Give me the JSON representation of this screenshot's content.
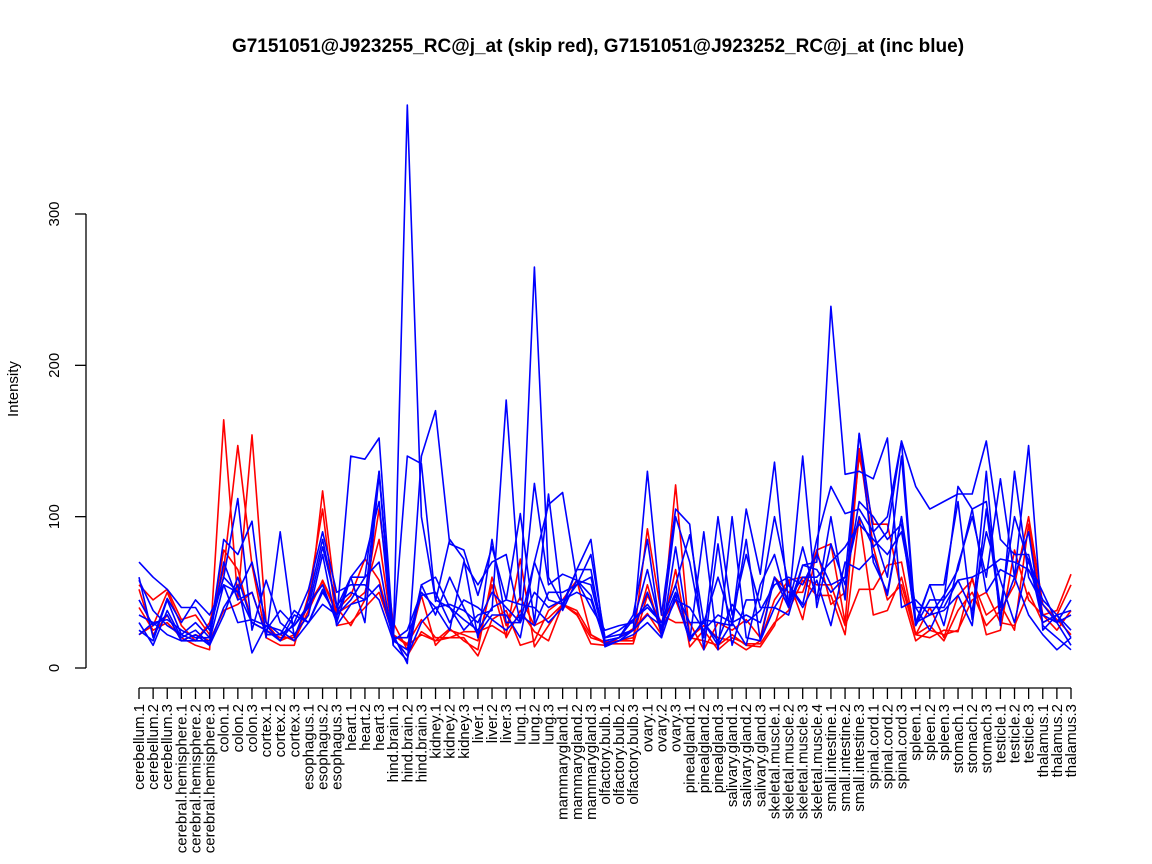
{
  "chart_data": {
    "type": "line",
    "title": "G7151051@J923255_RC@j_at (skip red), G7151051@J923252_RC@j_at (inc blue)",
    "xlabel": "",
    "ylabel": "Intensity",
    "ylim": [
      0,
      370
    ],
    "yticks": [
      0,
      100,
      200,
      300
    ],
    "grid": false,
    "categories": [
      "cerebellum.1",
      "cerebellum.2",
      "cerebellum.3",
      "cerebral.hemisphere.1",
      "cerebral.hemisphere.2",
      "cerebral.hemisphere.3",
      "colon.1",
      "colon.2",
      "colon.3",
      "cortex.1",
      "cortex.2",
      "cortex.3",
      "esophagus.1",
      "esophagus.2",
      "esophagus.3",
      "heart.1",
      "heart.2",
      "heart.3",
      "hind.brain.1",
      "hind.brain.2",
      "hind.brain.3",
      "kidney.1",
      "kidney.2",
      "kidney.3",
      "liver.1",
      "liver.2",
      "liver.3",
      "lung.1",
      "lung.2",
      "lung.3",
      "mammarygland.1",
      "mammarygland.2",
      "mammarygland.3",
      "olfactory.bulb.1",
      "olfactory.bulb.2",
      "olfactory.bulb.3",
      "ovary.1",
      "ovary.2",
      "ovary.3",
      "pinealgland.1",
      "pinealgland.2",
      "pinealgland.3",
      "salivary.gland.1",
      "salivary.gland.2",
      "salivary.gland.3",
      "skeletal.muscle.1",
      "skeletal.muscle.2",
      "skeletal.muscle.3",
      "skeletal.muscle.4",
      "small.intestine.1",
      "small.intestine.2",
      "small.intestine.3",
      "spinal.cord.1",
      "spinal.cord.2",
      "spinal.cord.3",
      "spleen.1",
      "spleen.2",
      "spleen.3",
      "stomach.1",
      "stomach.2",
      "stomach.3",
      "testicle.1",
      "testicle.2",
      "testicle.3",
      "thalamus.1",
      "thalamus.2",
      "thalamus.3"
    ],
    "series": [
      {
        "color": "#ff0000",
        "values": [
          40,
          25,
          30,
          20,
          15,
          12,
          164,
          45,
          154,
          30,
          18,
          22,
          35,
          117,
          40,
          28,
          45,
          105,
          30,
          12,
          48,
          15,
          25,
          22,
          18,
          55,
          20,
          38,
          24,
          18,
          42,
          38,
          22,
          17,
          18,
          20,
          55,
          22,
          121,
          20,
          18,
          15,
          22,
          15,
          14,
          28,
          58,
          60,
          55,
          55,
          28,
          52,
          52,
          68,
          70,
          22,
          28,
          18,
          38,
          50,
          28,
          38,
          55,
          100,
          42,
          32,
          22
        ]
      },
      {
        "color": "#ff0000",
        "values": [
          55,
          45,
          52,
          32,
          35,
          22,
          78,
          65,
          30,
          25,
          20,
          20,
          42,
          57,
          36,
          42,
          50,
          85,
          20,
          8,
          24,
          18,
          26,
          18,
          12,
          60,
          28,
          47,
          28,
          33,
          42,
          35,
          20,
          17,
          18,
          18,
          92,
          35,
          30,
          30,
          12,
          30,
          25,
          32,
          20,
          60,
          50,
          50,
          78,
          42,
          50,
          140,
          95,
          95,
          50,
          18,
          25,
          22,
          25,
          45,
          50,
          30,
          28,
          50,
          30,
          35,
          55
        ]
      },
      {
        "color": "#ff0000",
        "values": [
          22,
          28,
          50,
          28,
          18,
          30,
          65,
          147,
          68,
          20,
          15,
          15,
          48,
          105,
          28,
          30,
          40,
          50,
          22,
          15,
          22,
          18,
          20,
          20,
          8,
          32,
          38,
          15,
          18,
          38,
          45,
          58,
          22,
          16,
          16,
          16,
          48,
          30,
          45,
          20,
          28,
          20,
          18,
          12,
          18,
          45,
          58,
          32,
          78,
          82,
          30,
          145,
          80,
          45,
          55,
          22,
          40,
          20,
          48,
          58,
          35,
          42,
          25,
          95,
          35,
          25,
          38
        ]
      },
      {
        "color": "#ff0000",
        "values": [
          52,
          22,
          35,
          18,
          22,
          18,
          38,
          42,
          50,
          22,
          22,
          18,
          38,
          58,
          38,
          48,
          72,
          58,
          22,
          16,
          32,
          20,
          20,
          24,
          24,
          28,
          22,
          72,
          14,
          28,
          42,
          36,
          16,
          15,
          20,
          26,
          36,
          22,
          65,
          14,
          25,
          12,
          20,
          16,
          16,
          30,
          38,
          58,
          48,
          48,
          22,
          100,
          35,
          38,
          60,
          22,
          20,
          25,
          24,
          60,
          22,
          25,
          78,
          45,
          35,
          38,
          62
        ]
      },
      {
        "color": "#0000ff",
        "values": [
          58,
          38,
          28,
          22,
          18,
          28,
          60,
          50,
          30,
          25,
          38,
          28,
          42,
          55,
          30,
          60,
          72,
          110,
          15,
          372,
          100,
          45,
          40,
          25,
          35,
          38,
          177,
          45,
          265,
          60,
          42,
          55,
          75,
          20,
          25,
          32,
          40,
          30,
          55,
          18,
          32,
          30,
          28,
          85,
          18,
          60,
          40,
          68,
          70,
          239,
          128,
          130,
          125,
          152,
          40,
          45,
          35,
          38,
          48,
          28,
          105,
          35,
          60,
          35,
          22,
          12,
          20
        ]
      },
      {
        "color": "#0000ff",
        "values": [
          25,
          18,
          45,
          22,
          30,
          20,
          85,
          75,
          97,
          20,
          90,
          20,
          45,
          85,
          40,
          60,
          30,
          128,
          20,
          8,
          30,
          40,
          25,
          70,
          55,
          70,
          75,
          30,
          122,
          55,
          62,
          58,
          40,
          25,
          28,
          30,
          65,
          25,
          100,
          70,
          20,
          100,
          35,
          75,
          40,
          40,
          55,
          40,
          58,
          28,
          70,
          65,
          75,
          48,
          100,
          40,
          25,
          45,
          58,
          38,
          90,
          58,
          30,
          72,
          30,
          35,
          38
        ]
      },
      {
        "color": "#0000ff",
        "values": [
          70,
          60,
          52,
          40,
          40,
          25,
          60,
          112,
          25,
          58,
          30,
          22,
          35,
          75,
          28,
          42,
          45,
          130,
          20,
          140,
          135,
          44,
          85,
          72,
          20,
          85,
          30,
          30,
          70,
          108,
          116,
          58,
          55,
          18,
          20,
          35,
          85,
          20,
          80,
          20,
          30,
          15,
          30,
          15,
          55,
          75,
          40,
          140,
          40,
          82,
          55,
          110,
          100,
          85,
          95,
          30,
          55,
          28,
          68,
          100,
          60,
          125,
          60,
          147,
          25,
          35,
          20
        ]
      },
      {
        "color": "#0000ff",
        "values": [
          22,
          30,
          22,
          18,
          18,
          18,
          55,
          50,
          70,
          30,
          22,
          38,
          30,
          52,
          32,
          140,
          138,
          152,
          22,
          3,
          140,
          170,
          82,
          78,
          48,
          80,
          45,
          102,
          30,
          115,
          38,
          58,
          48,
          16,
          20,
          32,
          42,
          30,
          55,
          88,
          30,
          60,
          30,
          105,
          62,
          136,
          42,
          80,
          45,
          100,
          45,
          155,
          90,
          100,
          150,
          30,
          35,
          48,
          65,
          105,
          50,
          65,
          60,
          90,
          28,
          20,
          12
        ]
      },
      {
        "color": "#0000ff",
        "values": [
          30,
          15,
          38,
          20,
          25,
          16,
          40,
          55,
          10,
          28,
          25,
          18,
          30,
          42,
          35,
          60,
          60,
          130,
          15,
          5,
          55,
          35,
          60,
          40,
          22,
          35,
          35,
          20,
          70,
          45,
          42,
          65,
          65,
          14,
          18,
          22,
          30,
          20,
          48,
          18,
          90,
          12,
          100,
          20,
          18,
          40,
          35,
          68,
          65,
          50,
          60,
          155,
          70,
          50,
          100,
          28,
          55,
          55,
          110,
          32,
          130,
          28,
          130,
          60,
          42,
          30,
          45
        ]
      },
      {
        "color": "#0000ff",
        "values": [
          60,
          20,
          46,
          30,
          45,
          35,
          55,
          30,
          32,
          28,
          18,
          30,
          52,
          90,
          50,
          55,
          55,
          45,
          18,
          12,
          55,
          60,
          40,
          32,
          25,
          40,
          45,
          42,
          40,
          30,
          40,
          65,
          85,
          15,
          18,
          25,
          130,
          35,
          105,
          95,
          12,
          82,
          15,
          45,
          45,
          100,
          55,
          42,
          85,
          120,
          102,
          105,
          90,
          60,
          140,
          28,
          45,
          45,
          120,
          105,
          110,
          40,
          100,
          70,
          50,
          30,
          35
        ]
      },
      {
        "color": "#0000ff",
        "values": [
          35,
          30,
          32,
          25,
          20,
          20,
          70,
          45,
          50,
          22,
          22,
          28,
          40,
          80,
          42,
          50,
          45,
          55,
          20,
          20,
          48,
          50,
          30,
          45,
          40,
          32,
          25,
          35,
          28,
          50,
          50,
          55,
          60,
          20,
          22,
          25,
          35,
          28,
          50,
          30,
          30,
          18,
          42,
          30,
          38,
          55,
          60,
          55,
          75,
          55,
          60,
          100,
          80,
          90,
          150,
          120,
          105,
          110,
          115,
          115,
          150,
          85,
          75,
          75,
          35,
          30,
          15
        ]
      },
      {
        "color": "#0000ff",
        "values": [
          45,
          28,
          35,
          18,
          22,
          15,
          35,
          60,
          30,
          25,
          18,
          35,
          30,
          50,
          35,
          45,
          60,
          70,
          18,
          25,
          50,
          40,
          42,
          38,
          30,
          50,
          40,
          30,
          50,
          40,
          45,
          50,
          45,
          18,
          20,
          25,
          50,
          25,
          45,
          40,
          25,
          35,
          30,
          35,
          30,
          60,
          45,
          60,
          60,
          70,
          80,
          95,
          85,
          75,
          90,
          40,
          40,
          40,
          58,
          60,
          65,
          72,
          70,
          65,
          45,
          35,
          25
        ]
      }
    ]
  }
}
